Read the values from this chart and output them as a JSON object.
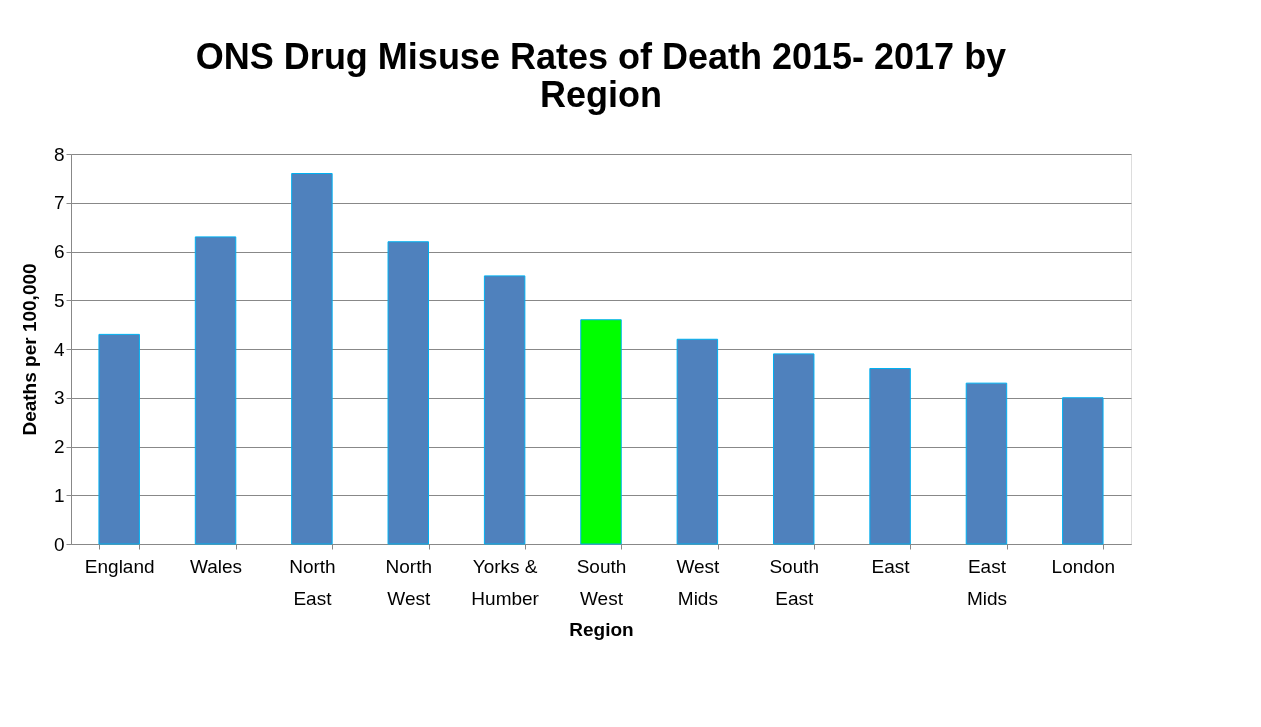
{
  "chart_data": {
    "type": "bar",
    "title": "ONS Drug Misuse Rates of Death 2015- 2017 by Region",
    "xlabel": "Region",
    "ylabel": "Deaths per 100,000",
    "categories": [
      "England",
      "Wales",
      "North East",
      "North West",
      "Yorks & Humber",
      "South West",
      "West Mids",
      "South East",
      "East",
      "East Mids",
      "London"
    ],
    "values": [
      4.3,
      6.3,
      7.6,
      6.2,
      5.5,
      4.6,
      4.2,
      3.9,
      3.6,
      3.3,
      3.0
    ],
    "colors": [
      "#4f81bd",
      "#4f81bd",
      "#4f81bd",
      "#4f81bd",
      "#4f81bd",
      "#00ff00",
      "#4f81bd",
      "#4f81bd",
      "#4f81bd",
      "#4f81bd",
      "#4f81bd"
    ],
    "ylim": [
      0,
      8
    ],
    "yticks": [
      0,
      1,
      2,
      3,
      4,
      5,
      6,
      7,
      8
    ],
    "grid": "y"
  }
}
